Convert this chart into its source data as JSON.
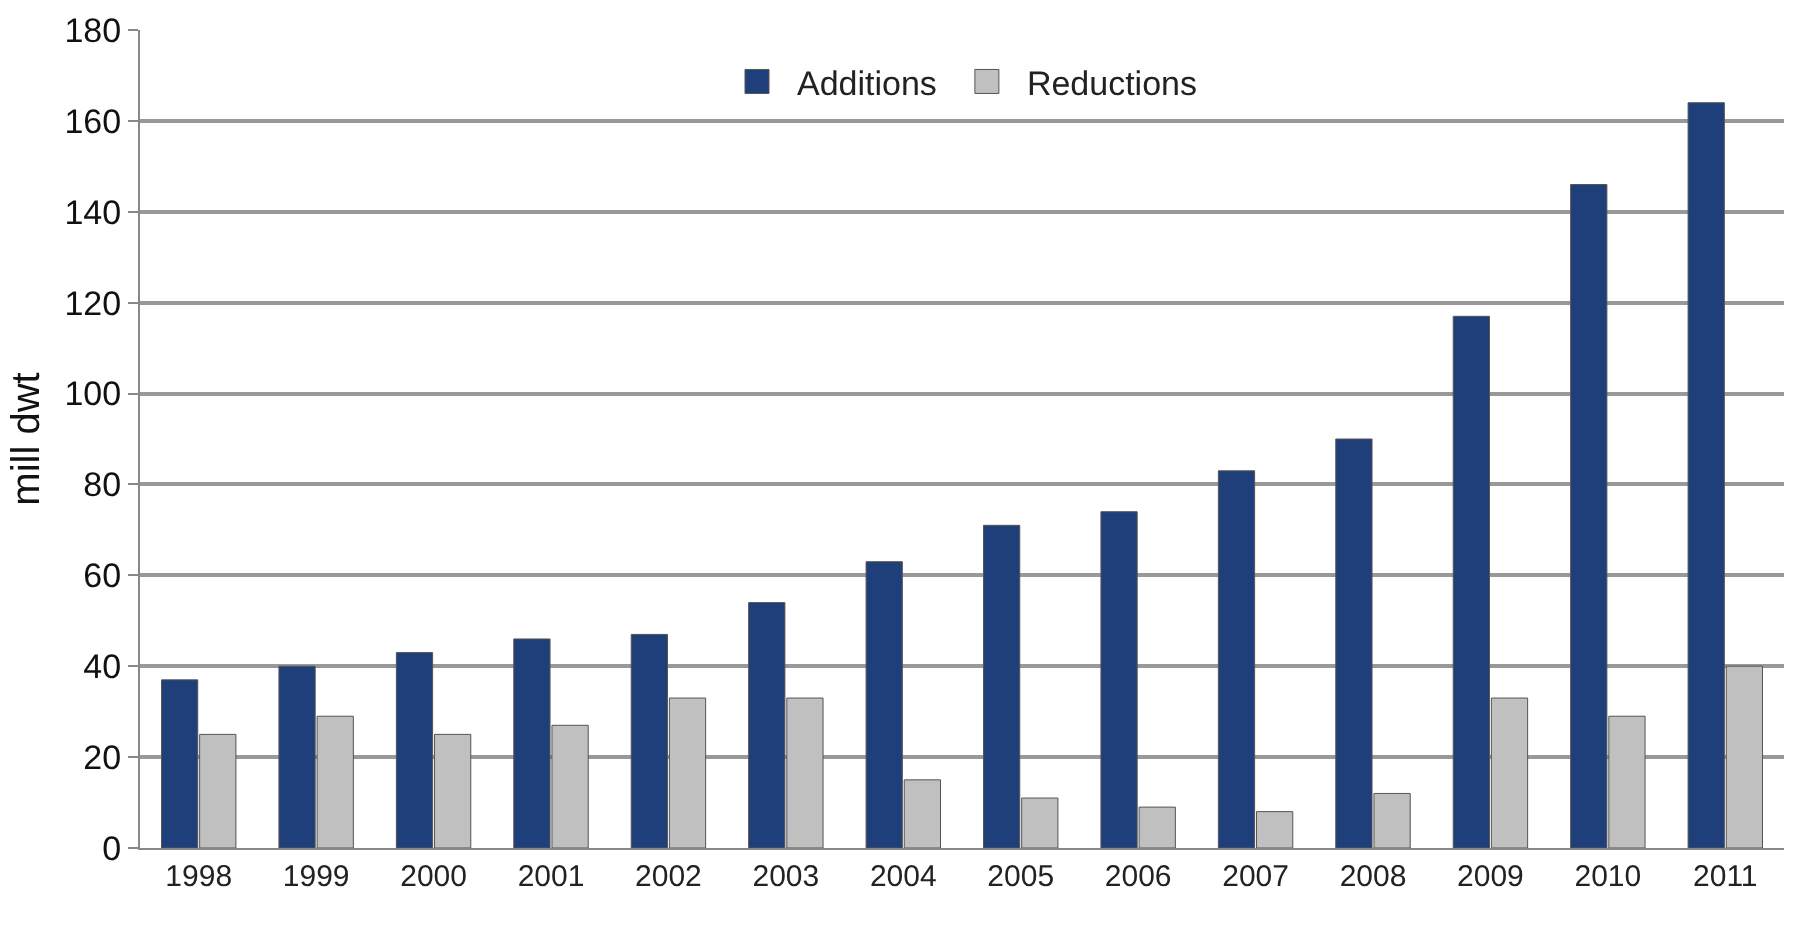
{
  "chart_data": {
    "type": "bar",
    "ylabel": "mill dwt",
    "categories": [
      "1998",
      "1999",
      "2000",
      "2001",
      "2002",
      "2003",
      "2004",
      "2005",
      "2006",
      "2007",
      "2008",
      "2009",
      "2010",
      "2011"
    ],
    "series": [
      {
        "name": "Additions",
        "color": "#1f3f7a",
        "values": [
          37,
          40,
          43,
          46,
          47,
          54,
          63,
          71,
          74,
          83,
          90,
          117,
          146,
          164
        ]
      },
      {
        "name": "Reductions",
        "color": "#c0c0c0",
        "values": [
          25,
          29,
          25,
          27,
          33,
          33,
          15,
          11,
          9,
          8,
          12,
          33,
          29,
          40
        ]
      }
    ],
    "ylim": [
      0,
      180
    ],
    "yticks": [
      0,
      20,
      40,
      60,
      80,
      100,
      120,
      140,
      160,
      180
    ],
    "grid": "y",
    "legend": "top"
  }
}
